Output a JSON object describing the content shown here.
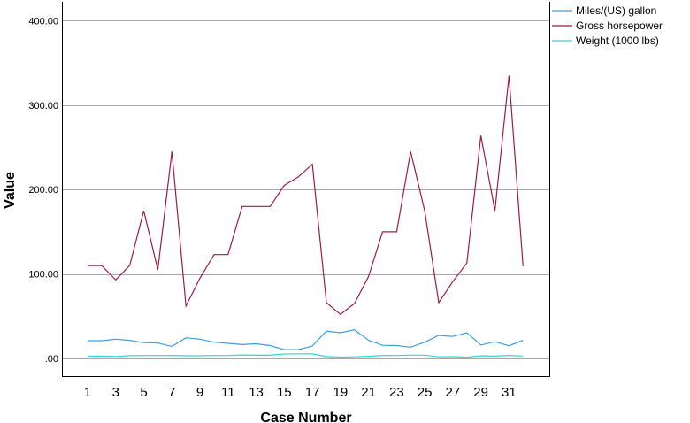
{
  "chart_data": {
    "type": "line",
    "xlabel": "Case Number",
    "ylabel": "Value",
    "x": [
      1,
      2,
      3,
      4,
      5,
      6,
      7,
      8,
      9,
      10,
      11,
      12,
      13,
      14,
      15,
      16,
      17,
      18,
      19,
      20,
      21,
      22,
      23,
      24,
      25,
      26,
      27,
      28,
      29,
      30,
      31,
      32
    ],
    "x_tick_labels": [
      "1",
      "3",
      "5",
      "7",
      "9",
      "11",
      "13",
      "15",
      "17",
      "19",
      "21",
      "23",
      "25",
      "27",
      "29",
      "31"
    ],
    "ylim": [
      -20,
      420
    ],
    "y_ticks": [
      0,
      100,
      200,
      300,
      400
    ],
    "y_tick_labels": [
      ".00",
      "100.00",
      "200.00",
      "300.00",
      "400.00"
    ],
    "grid": "horizontal",
    "legend_position": "top-right",
    "series": [
      {
        "name": "Miles/(US) gallon",
        "color": "#3c9fe0",
        "values": [
          21.0,
          21.0,
          22.8,
          21.4,
          18.7,
          18.1,
          14.3,
          24.4,
          22.8,
          19.2,
          17.8,
          16.4,
          17.3,
          15.2,
          10.4,
          10.4,
          14.7,
          32.4,
          30.4,
          33.9,
          21.5,
          15.5,
          15.2,
          13.3,
          19.2,
          27.3,
          26.0,
          30.4,
          15.8,
          19.7,
          15.0,
          21.4
        ]
      },
      {
        "name": "Gross horsepower",
        "color": "#9b1b4b",
        "values": [
          110,
          110,
          93,
          110,
          175,
          105,
          245,
          62,
          95,
          123,
          123,
          180,
          180,
          180,
          205,
          215,
          230,
          66,
          52,
          65,
          97,
          150,
          150,
          245,
          175,
          66,
          91,
          113,
          264,
          175,
          335,
          109
        ]
      },
      {
        "name": "Weight (1000 lbs)",
        "color": "#33d6d6",
        "values": [
          2.62,
          2.875,
          2.32,
          3.215,
          3.44,
          3.46,
          3.57,
          3.19,
          3.15,
          3.44,
          3.44,
          4.07,
          3.73,
          3.78,
          5.25,
          5.424,
          5.345,
          2.2,
          1.615,
          1.835,
          2.465,
          3.52,
          3.435,
          3.84,
          3.845,
          1.935,
          2.14,
          1.513,
          3.17,
          2.77,
          3.57,
          2.78
        ]
      }
    ]
  }
}
